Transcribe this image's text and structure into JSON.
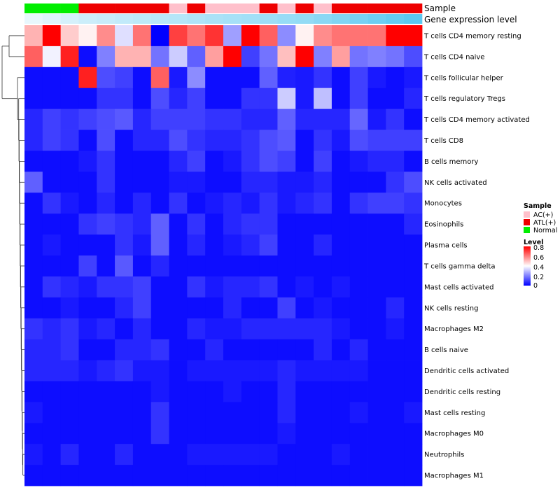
{
  "chart_data": {
    "type": "heatmap",
    "title": "",
    "annotation_rows": [
      {
        "label": "Sample"
      },
      {
        "label": "Gene expression level"
      }
    ],
    "sample_groups": [
      "Normal",
      "Normal",
      "Normal",
      "ATL(+)",
      "ATL(+)",
      "ATL(+)",
      "ATL(+)",
      "ATL(+)",
      "AC(+)",
      "ATL(+)",
      "AC(+)",
      "AC(+)",
      "AC(+)",
      "ATL(+)",
      "AC(+)",
      "ATL(+)",
      "AC(+)",
      "ATL(+)",
      "ATL(+)",
      "ATL(+)",
      "ATL(+)",
      "ATL(+)"
    ],
    "expression_level": [
      0.05,
      0.1,
      0.15,
      0.2,
      0.22,
      0.25,
      0.28,
      0.3,
      0.32,
      0.35,
      0.38,
      0.4,
      0.42,
      0.45,
      0.48,
      0.5,
      0.55,
      0.6,
      0.65,
      0.7,
      0.75,
      0.8
    ],
    "rows": [
      "T cells CD4 memory resting",
      "T cells CD4 naive",
      "T cells follicular helper",
      "T cells regulatory  Tregs",
      "T cells CD4 memory activated",
      "T cells CD8",
      "B cells memory",
      "NK cells activated",
      "Monocytes",
      "Eosinophils",
      "Plasma cells",
      "T cells gamma delta",
      "Mast cells activated",
      "NK cells resting",
      "Macrophages M2",
      "B cells naive",
      "Dendritic cells activated",
      "Dendritic cells resting",
      "Mast cells resting",
      "Macrophages M0",
      "Neutrophils",
      "Macrophages M1"
    ],
    "values": [
      [
        0.52,
        0.8,
        0.48,
        0.42,
        0.58,
        0.35,
        0.62,
        0.0,
        0.7,
        0.62,
        0.72,
        0.25,
        0.8,
        0.65,
        0.22,
        0.42,
        0.58,
        0.62,
        0.62,
        0.62,
        0.8,
        0.8
      ],
      [
        0.65,
        0.38,
        0.75,
        0.02,
        0.2,
        0.52,
        0.52,
        0.18,
        0.32,
        0.15,
        0.55,
        0.8,
        0.1,
        0.18,
        0.5,
        0.8,
        0.2,
        0.55,
        0.18,
        0.2,
        0.18,
        0.12
      ],
      [
        0.02,
        0.02,
        0.02,
        0.75,
        0.12,
        0.1,
        0.02,
        0.65,
        0.04,
        0.22,
        0.02,
        0.02,
        0.02,
        0.15,
        0.05,
        0.04,
        0.08,
        0.02,
        0.1,
        0.04,
        0.02,
        0.04
      ],
      [
        0.02,
        0.02,
        0.02,
        0.02,
        0.08,
        0.08,
        0.02,
        0.12,
        0.06,
        0.1,
        0.02,
        0.02,
        0.08,
        0.08,
        0.32,
        0.04,
        0.3,
        0.02,
        0.1,
        0.02,
        0.02,
        0.06
      ],
      [
        0.06,
        0.1,
        0.08,
        0.1,
        0.12,
        0.14,
        0.06,
        0.1,
        0.1,
        0.1,
        0.08,
        0.08,
        0.06,
        0.06,
        0.15,
        0.06,
        0.06,
        0.06,
        0.16,
        0.04,
        0.08,
        0.02
      ],
      [
        0.06,
        0.1,
        0.08,
        0.02,
        0.12,
        0.02,
        0.06,
        0.06,
        0.12,
        0.08,
        0.06,
        0.06,
        0.08,
        0.12,
        0.14,
        0.02,
        0.08,
        0.04,
        0.12,
        0.1,
        0.1,
        0.1
      ],
      [
        0.02,
        0.02,
        0.02,
        0.04,
        0.08,
        0.02,
        0.02,
        0.02,
        0.06,
        0.1,
        0.02,
        0.04,
        0.08,
        0.12,
        0.1,
        0.02,
        0.1,
        0.02,
        0.04,
        0.06,
        0.06,
        0.02
      ],
      [
        0.15,
        0.02,
        0.02,
        0.02,
        0.08,
        0.02,
        0.02,
        0.02,
        0.04,
        0.04,
        0.02,
        0.02,
        0.06,
        0.06,
        0.04,
        0.04,
        0.06,
        0.02,
        0.02,
        0.02,
        0.08,
        0.12
      ],
      [
        0.02,
        0.08,
        0.04,
        0.02,
        0.06,
        0.02,
        0.06,
        0.02,
        0.08,
        0.02,
        0.04,
        0.06,
        0.04,
        0.08,
        0.04,
        0.06,
        0.08,
        0.02,
        0.08,
        0.1,
        0.1,
        0.08
      ],
      [
        0.02,
        0.02,
        0.02,
        0.08,
        0.1,
        0.08,
        0.06,
        0.15,
        0.02,
        0.08,
        0.02,
        0.06,
        0.08,
        0.08,
        0.02,
        0.02,
        0.02,
        0.02,
        0.02,
        0.02,
        0.02,
        0.06
      ],
      [
        0.02,
        0.04,
        0.02,
        0.02,
        0.02,
        0.08,
        0.04,
        0.15,
        0.02,
        0.06,
        0.02,
        0.04,
        0.06,
        0.1,
        0.02,
        0.02,
        0.06,
        0.02,
        0.02,
        0.02,
        0.02,
        0.02
      ],
      [
        0.02,
        0.02,
        0.02,
        0.1,
        0.02,
        0.14,
        0.02,
        0.06,
        0.02,
        0.02,
        0.02,
        0.02,
        0.02,
        0.02,
        0.02,
        0.02,
        0.02,
        0.02,
        0.02,
        0.02,
        0.02,
        0.02
      ],
      [
        0.02,
        0.08,
        0.06,
        0.04,
        0.08,
        0.08,
        0.1,
        0.02,
        0.02,
        0.08,
        0.04,
        0.06,
        0.06,
        0.08,
        0.02,
        0.04,
        0.02,
        0.04,
        0.02,
        0.02,
        0.02,
        0.02
      ],
      [
        0.02,
        0.02,
        0.04,
        0.02,
        0.02,
        0.06,
        0.1,
        0.02,
        0.02,
        0.02,
        0.02,
        0.06,
        0.02,
        0.02,
        0.1,
        0.02,
        0.04,
        0.02,
        0.02,
        0.02,
        0.06,
        0.02
      ],
      [
        0.08,
        0.06,
        0.08,
        0.04,
        0.06,
        0.02,
        0.06,
        0.02,
        0.02,
        0.06,
        0.04,
        0.04,
        0.06,
        0.06,
        0.06,
        0.06,
        0.06,
        0.04,
        0.02,
        0.02,
        0.04,
        0.02
      ],
      [
        0.06,
        0.06,
        0.08,
        0.02,
        0.02,
        0.06,
        0.06,
        0.08,
        0.02,
        0.02,
        0.06,
        0.02,
        0.02,
        0.02,
        0.02,
        0.02,
        0.06,
        0.02,
        0.06,
        0.02,
        0.02,
        0.02
      ],
      [
        0.06,
        0.06,
        0.06,
        0.04,
        0.06,
        0.08,
        0.04,
        0.04,
        0.02,
        0.04,
        0.04,
        0.04,
        0.04,
        0.04,
        0.06,
        0.04,
        0.04,
        0.04,
        0.04,
        0.02,
        0.02,
        0.02
      ],
      [
        0.02,
        0.02,
        0.02,
        0.02,
        0.02,
        0.02,
        0.02,
        0.04,
        0.02,
        0.02,
        0.02,
        0.04,
        0.02,
        0.02,
        0.06,
        0.02,
        0.02,
        0.02,
        0.02,
        0.02,
        0.02,
        0.02
      ],
      [
        0.04,
        0.02,
        0.02,
        0.02,
        0.02,
        0.02,
        0.02,
        0.08,
        0.02,
        0.02,
        0.02,
        0.02,
        0.02,
        0.02,
        0.06,
        0.02,
        0.02,
        0.02,
        0.04,
        0.02,
        0.02,
        0.04
      ],
      [
        0.02,
        0.02,
        0.02,
        0.02,
        0.02,
        0.02,
        0.02,
        0.08,
        0.02,
        0.02,
        0.02,
        0.02,
        0.02,
        0.02,
        0.04,
        0.02,
        0.02,
        0.02,
        0.02,
        0.02,
        0.02,
        0.02
      ],
      [
        0.04,
        0.02,
        0.06,
        0.02,
        0.02,
        0.06,
        0.02,
        0.02,
        0.02,
        0.04,
        0.04,
        0.04,
        0.04,
        0.04,
        0.02,
        0.02,
        0.02,
        0.04,
        0.02,
        0.02,
        0.02,
        0.02
      ],
      [
        0.02,
        0.02,
        0.02,
        0.02,
        0.02,
        0.02,
        0.02,
        0.02,
        0.02,
        0.02,
        0.02,
        0.02,
        0.02,
        0.02,
        0.02,
        0.02,
        0.02,
        0.02,
        0.02,
        0.02,
        0.02,
        0.02
      ]
    ],
    "legend": {
      "sample_title": "Sample",
      "sample_groups": [
        {
          "name": "AC(+)",
          "color": "#ffc0cb"
        },
        {
          "name": "ATL(+)",
          "color": "#ee0000"
        },
        {
          "name": "Normal",
          "color": "#00ee00"
        }
      ],
      "level_title": "Level",
      "level_ticks": [
        "0.8",
        "0.6",
        "0.4",
        "0.2",
        "0"
      ],
      "level_range": [
        0,
        0.8
      ],
      "level_colors": [
        "#0000ff",
        "#ffffff",
        "#ff0000"
      ],
      "position": "right"
    },
    "expression_colors": [
      "#e8f7fd",
      "#5bc8f0"
    ],
    "dendrogram": "rows"
  }
}
